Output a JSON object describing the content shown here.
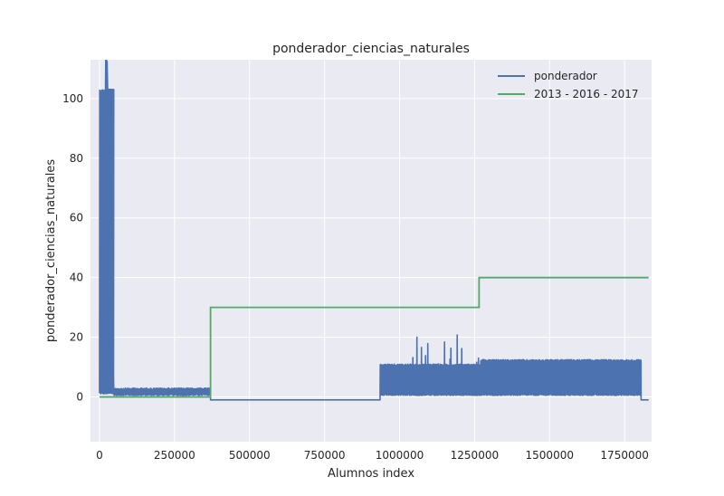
{
  "chart_data": {
    "type": "line",
    "title": "ponderador_ciencias_naturales",
    "xlabel": "Alumnos index",
    "ylabel": "ponderador_ciencias_naturales",
    "xlim": [
      -30000,
      1840000
    ],
    "ylim": [
      -15,
      113
    ],
    "xticks": [
      0,
      250000,
      500000,
      750000,
      1000000,
      1250000,
      1500000,
      1750000
    ],
    "yticks": [
      0,
      20,
      40,
      60,
      80,
      100
    ],
    "grid": true,
    "legend": "top-right",
    "series": [
      {
        "name": "ponderador",
        "color": "#4c72b0",
        "style": "dense-noise",
        "segments": [
          {
            "x_start": 0,
            "x_end": 48000,
            "y_min": 1,
            "y_max": 103
          },
          {
            "x_start": 20000,
            "x_end": 25000,
            "y_min": 103,
            "y_max": 113
          },
          {
            "x_start": 48000,
            "x_end": 370000,
            "y_min": 0.5,
            "y_max": 3
          },
          {
            "x_start": 370000,
            "x_end": 935000,
            "y_min": -1,
            "y_max": -1
          },
          {
            "x_start": 935000,
            "x_end": 1270000,
            "y_min": 0.5,
            "y_max": 11,
            "spike_max": 21.5
          },
          {
            "x_start": 1270000,
            "x_end": 1805000,
            "y_min": 0.5,
            "y_max": 12.5
          },
          {
            "x_start": 1805000,
            "x_end": 1830000,
            "y_min": -1,
            "y_max": -1
          }
        ]
      },
      {
        "name": "2013 - 2016 - 2017",
        "color": "#55a868",
        "style": "step",
        "x": [
          0,
          370000,
          370000,
          1265000,
          1265000,
          1830000
        ],
        "y": [
          0,
          0,
          30,
          30,
          40,
          40
        ]
      }
    ]
  }
}
